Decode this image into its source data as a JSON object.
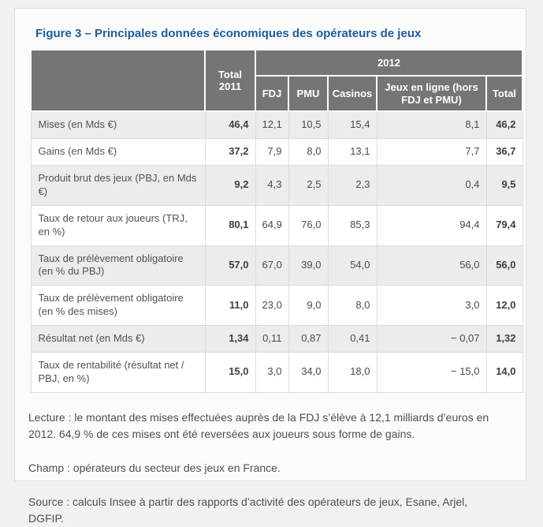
{
  "page": {
    "title": "Figure 3 – Principales données économiques des opérateurs de jeux"
  },
  "table": {
    "header": {
      "total_2011": "Total 2011",
      "year_group": "2012",
      "sub_columns": [
        "FDJ",
        "PMU",
        "Casinos",
        "Jeux en ligne (hors FDJ et PMU)",
        "Total"
      ]
    },
    "rows": [
      {
        "label": "Mises (en Mds €)",
        "total_2011": "46,4",
        "fdj": "12,1",
        "pmu": "10,5",
        "casinos": "15,4",
        "jeux_en_ligne": "8,1",
        "total_2012": "46,2"
      },
      {
        "label": "Gains (en Mds €)",
        "total_2011": "37,2",
        "fdj": "7,9",
        "pmu": "8,0",
        "casinos": "13,1",
        "jeux_en_ligne": "7,7",
        "total_2012": "36,7"
      },
      {
        "label": "Produit brut des jeux (PBJ, en Mds €)",
        "total_2011": "9,2",
        "fdj": "4,3",
        "pmu": "2,5",
        "casinos": "2,3",
        "jeux_en_ligne": "0,4",
        "total_2012": "9,5"
      },
      {
        "label": "Taux de retour aux joueurs (TRJ, en %)",
        "total_2011": "80,1",
        "fdj": "64,9",
        "pmu": "76,0",
        "casinos": "85,3",
        "jeux_en_ligne": "94,4",
        "total_2012": "79,4"
      },
      {
        "label": "Taux de prélèvement obligatoire (en % du PBJ)",
        "total_2011": "57,0",
        "fdj": "67,0",
        "pmu": "39,0",
        "casinos": "54,0",
        "jeux_en_ligne": "56,0",
        "total_2012": "56,0"
      },
      {
        "label": "Taux de prélèvement obligatoire (en % des mises)",
        "total_2011": "11,0",
        "fdj": "23,0",
        "pmu": "9,0",
        "casinos": "8,0",
        "jeux_en_ligne": "3,0",
        "total_2012": "12,0"
      },
      {
        "label": "Résultat net (en Mds €)",
        "total_2011": "1,34",
        "fdj": "0,11",
        "pmu": "0,87",
        "casinos": "0,41",
        "jeux_en_ligne": "− 0,07",
        "total_2012": "1,32"
      },
      {
        "label": "Taux de rentabilité (résultat net / PBJ, en %)",
        "total_2011": "15,0",
        "fdj": "3,0",
        "pmu": "34,0",
        "casinos": "18,0",
        "jeux_en_ligne": "− 15,0",
        "total_2012": "14,0"
      }
    ]
  },
  "footer": {
    "lecture": "Lecture : le montant des mises effectuées auprès de la FDJ s’élève à 12,1 milliards d’euros en 2012. 64,9 % de ces mises ont été reversées aux joueurs sous forme de gains.",
    "champ": "Champ : opérateurs du secteur des jeux en France.",
    "source": "Source : calculs Insee à partir des rapports d’activité des opérateurs de jeux, Esane, Arjel, DGFIP."
  },
  "colors": {
    "title_blue": "#1e5b9e",
    "header_gray": "#757575",
    "alt_row_gray": "#ececec",
    "page_background": "#f0f1f1",
    "panel_background": "#fbfbfb"
  },
  "chart_data": {
    "type": "table",
    "title": "Figure 3 – Principales données économiques des opérateurs de jeux",
    "columns": [
      "Total 2011",
      "FDJ",
      "PMU",
      "Casinos",
      "Jeux en ligne (hors FDJ et PMU)",
      "Total"
    ],
    "column_group": {
      "label": "2012",
      "covers": [
        "FDJ",
        "PMU",
        "Casinos",
        "Jeux en ligne (hors FDJ et PMU)",
        "Total"
      ]
    },
    "rows": [
      {
        "label": "Mises (en Mds €)",
        "values": [
          46.4,
          12.1,
          10.5,
          15.4,
          8.1,
          46.2
        ]
      },
      {
        "label": "Gains (en Mds €)",
        "values": [
          37.2,
          7.9,
          8.0,
          13.1,
          7.7,
          36.7
        ]
      },
      {
        "label": "Produit brut des jeux (PBJ, en Mds €)",
        "values": [
          9.2,
          4.3,
          2.5,
          2.3,
          0.4,
          9.5
        ]
      },
      {
        "label": "Taux de retour aux joueurs (TRJ, en %)",
        "values": [
          80.1,
          64.9,
          76.0,
          85.3,
          94.4,
          79.4
        ]
      },
      {
        "label": "Taux de prélèvement obligatoire (en % du PBJ)",
        "values": [
          57.0,
          67.0,
          39.0,
          54.0,
          56.0,
          56.0
        ]
      },
      {
        "label": "Taux de prélèvement obligatoire (en % des mises)",
        "values": [
          11.0,
          23.0,
          9.0,
          8.0,
          3.0,
          12.0
        ]
      },
      {
        "label": "Résultat net (en Mds €)",
        "values": [
          1.34,
          0.11,
          0.87,
          0.41,
          -0.07,
          1.32
        ]
      },
      {
        "label": "Taux de rentabilité (résultat net / PBJ, en %)",
        "values": [
          15.0,
          3.0,
          34.0,
          18.0,
          -15.0,
          14.0
        ]
      }
    ],
    "notes": [
      "Lecture : le montant des mises effectuées auprès de la FDJ s’élève à 12,1 milliards d’euros en 2012. 64,9 % de ces mises ont été reversées aux joueurs sous forme de gains.",
      "Champ : opérateurs du secteur des jeux en France.",
      "Source : calculs Insee à partir des rapports d’activité des opérateurs de jeux, Esane, Arjel, DGFIP."
    ]
  }
}
